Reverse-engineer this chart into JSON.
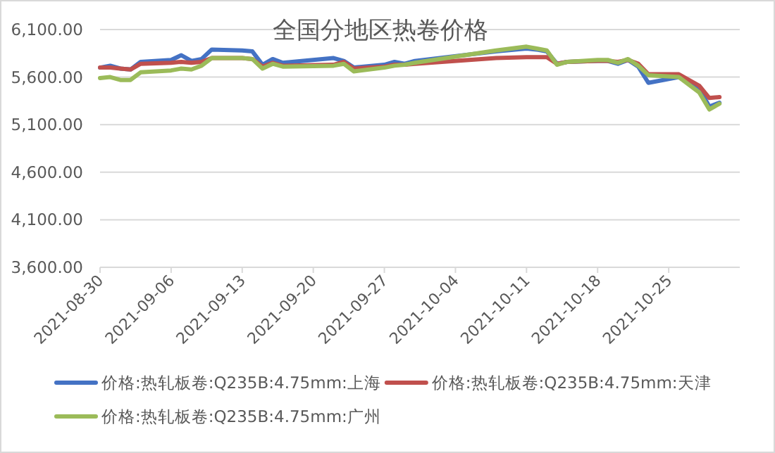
{
  "chart_data": {
    "type": "line",
    "title": "全国分地区热卷价格",
    "x": [
      "2021-08-30",
      "2021-08-31",
      "2021-09-01",
      "2021-09-02",
      "2021-09-03",
      "2021-09-06",
      "2021-09-07",
      "2021-09-08",
      "2021-09-09",
      "2021-09-10",
      "2021-09-13",
      "2021-09-14",
      "2021-09-15",
      "2021-09-16",
      "2021-09-17",
      "2021-09-22",
      "2021-09-23",
      "2021-09-24",
      "2021-09-27",
      "2021-09-28",
      "2021-09-29",
      "2021-09-30",
      "2021-10-08",
      "2021-10-11",
      "2021-10-12",
      "2021-10-13",
      "2021-10-14",
      "2021-10-15",
      "2021-10-18",
      "2021-10-19",
      "2021-10-20",
      "2021-10-21",
      "2021-10-22",
      "2021-10-23",
      "2021-10-26",
      "2021-10-28",
      "2021-10-29",
      "2021-10-30"
    ],
    "series": [
      {
        "name": "价格:热轧板卷:Q235B:4.75mm:上海",
        "color": "#4472c4",
        "values": [
          5700,
          5720,
          5690,
          5680,
          5760,
          5780,
          5830,
          5770,
          5790,
          5890,
          5880,
          5870,
          5730,
          5790,
          5750,
          5800,
          5770,
          5700,
          5730,
          5760,
          5740,
          5770,
          5870,
          5900,
          5890,
          5870,
          5740,
          5760,
          5770,
          5770,
          5740,
          5780,
          5710,
          5540,
          5600,
          5480,
          5290,
          5330
        ]
      },
      {
        "name": "价格:热轧板卷:Q235B:4.75mm:天津",
        "color": "#c0504d",
        "values": [
          5700,
          5700,
          5690,
          5680,
          5740,
          5750,
          5760,
          5750,
          5760,
          5800,
          5800,
          5790,
          5710,
          5750,
          5720,
          5730,
          5760,
          5690,
          5710,
          5730,
          5730,
          5740,
          5800,
          5810,
          5810,
          5810,
          5740,
          5760,
          5770,
          5770,
          5760,
          5780,
          5740,
          5630,
          5630,
          5510,
          5380,
          5390
        ]
      },
      {
        "name": "价格:热轧板卷:Q235B:4.75mm:广州",
        "color": "#9bbb59",
        "values": [
          5590,
          5600,
          5570,
          5570,
          5650,
          5670,
          5690,
          5680,
          5720,
          5800,
          5800,
          5790,
          5690,
          5740,
          5710,
          5720,
          5740,
          5660,
          5700,
          5720,
          5730,
          5750,
          5880,
          5920,
          5900,
          5880,
          5730,
          5760,
          5780,
          5780,
          5750,
          5790,
          5720,
          5620,
          5600,
          5440,
          5260,
          5320
        ]
      }
    ],
    "xlim": [
      "2021-08-30",
      "2021-11-01"
    ],
    "xticks": [
      "2021-08-30",
      "2021-09-06",
      "2021-09-13",
      "2021-09-20",
      "2021-09-27",
      "2021-10-04",
      "2021-10-11",
      "2021-10-18",
      "2021-10-25"
    ],
    "ylim": [
      3600,
      6100
    ],
    "yticks": [
      {
        "value": 3600,
        "label": "3,600.00"
      },
      {
        "value": 4100,
        "label": "4,100.00"
      },
      {
        "value": 4600,
        "label": "4,600.00"
      },
      {
        "value": 5100,
        "label": "5,100.00"
      },
      {
        "value": 5600,
        "label": "5,600.00"
      },
      {
        "value": 6100,
        "label": "6,100.00"
      }
    ],
    "grid": "y",
    "legend": "bottom"
  }
}
